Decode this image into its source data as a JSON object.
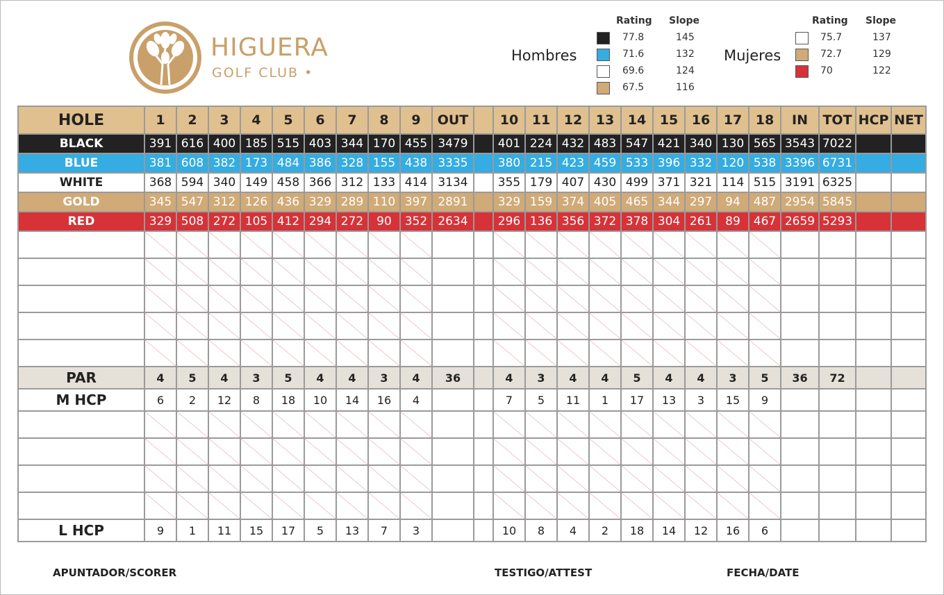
{
  "brand": {
    "name": "HIGUERA",
    "sub": "GOLF CLUB"
  },
  "ratings": {
    "rating_header": "Rating",
    "slope_header": "Slope",
    "men": {
      "label": "Hombres",
      "tees": [
        {
          "color": "#222222",
          "rating": "77.8",
          "slope": "145"
        },
        {
          "color": "#35ace2",
          "rating": "71.6",
          "slope": "132"
        },
        {
          "color": "#ffffff",
          "rating": "69.6",
          "slope": "124"
        },
        {
          "color": "#d0aa77",
          "rating": "67.5",
          "slope": "116"
        }
      ]
    },
    "women": {
      "label": "Mujeres",
      "tees": [
        {
          "color": "#ffffff",
          "rating": "75.7",
          "slope": "137"
        },
        {
          "color": "#d0aa77",
          "rating": "72.7",
          "slope": "129"
        },
        {
          "color": "#d63238",
          "rating": "70",
          "slope": "122"
        }
      ]
    }
  },
  "scorecard": {
    "header": {
      "label": "HOLE",
      "front": [
        "1",
        "2",
        "3",
        "4",
        "5",
        "6",
        "7",
        "8",
        "9"
      ],
      "out": "OUT",
      "back": [
        "10",
        "11",
        "12",
        "13",
        "14",
        "15",
        "16",
        "17",
        "18"
      ],
      "in": "IN",
      "tot": "TOT",
      "hcp": "HCP",
      "net": "NET"
    },
    "tees": [
      {
        "key": "black",
        "label": "BLACK",
        "front": [
          "391",
          "616",
          "400",
          "185",
          "515",
          "403",
          "344",
          "170",
          "455"
        ],
        "out": "3479",
        "back": [
          "401",
          "224",
          "432",
          "483",
          "547",
          "421",
          "340",
          "130",
          "565"
        ],
        "in": "3543",
        "tot": "7022"
      },
      {
        "key": "blue",
        "label": "BLUE",
        "front": [
          "381",
          "608",
          "382",
          "173",
          "484",
          "386",
          "328",
          "155",
          "438"
        ],
        "out": "3335",
        "back": [
          "380",
          "215",
          "423",
          "459",
          "533",
          "396",
          "332",
          "120",
          "538"
        ],
        "in": "3396",
        "tot": "6731"
      },
      {
        "key": "white",
        "label": "WHITE",
        "front": [
          "368",
          "594",
          "340",
          "149",
          "458",
          "366",
          "312",
          "133",
          "414"
        ],
        "out": "3134",
        "back": [
          "355",
          "179",
          "407",
          "430",
          "499",
          "371",
          "321",
          "114",
          "515"
        ],
        "in": "3191",
        "tot": "6325"
      },
      {
        "key": "gold",
        "label": "GOLD",
        "front": [
          "345",
          "547",
          "312",
          "126",
          "436",
          "329",
          "289",
          "110",
          "397"
        ],
        "out": "2891",
        "back": [
          "329",
          "159",
          "374",
          "405",
          "465",
          "344",
          "297",
          "94",
          "487"
        ],
        "in": "2954",
        "tot": "5845"
      },
      {
        "key": "red",
        "label": "RED",
        "front": [
          "329",
          "508",
          "272",
          "105",
          "412",
          "294",
          "272",
          "90",
          "352"
        ],
        "out": "2634",
        "back": [
          "296",
          "136",
          "356",
          "372",
          "378",
          "304",
          "261",
          "89",
          "467"
        ],
        "in": "2659",
        "tot": "5293"
      }
    ],
    "par": {
      "label": "PAR",
      "front": [
        "4",
        "5",
        "4",
        "3",
        "5",
        "4",
        "4",
        "3",
        "4"
      ],
      "out": "36",
      "back": [
        "4",
        "3",
        "4",
        "4",
        "5",
        "4",
        "4",
        "3",
        "5"
      ],
      "in": "36",
      "tot": "72"
    },
    "m_hcp": {
      "label": "M HCP",
      "front": [
        "6",
        "2",
        "12",
        "8",
        "18",
        "10",
        "14",
        "16",
        "4"
      ],
      "back": [
        "7",
        "5",
        "11",
        "1",
        "17",
        "13",
        "3",
        "15",
        "9"
      ]
    },
    "l_hcp": {
      "label": "L  HCP",
      "front": [
        "9",
        "1",
        "11",
        "15",
        "17",
        "5",
        "13",
        "7",
        "3"
      ],
      "back": [
        "10",
        "8",
        "4",
        "2",
        "18",
        "14",
        "12",
        "16",
        "6"
      ]
    }
  },
  "footer": {
    "scorer": "APUNTADOR/SCORER",
    "attest": "TESTIGO/ATTEST",
    "date": "FECHA/DATE"
  }
}
